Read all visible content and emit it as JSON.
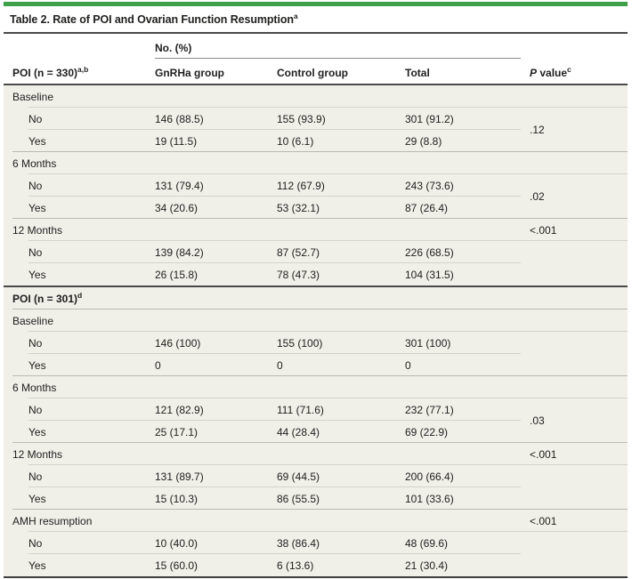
{
  "title": {
    "text": "Table 2. Rate of POI and Ovarian Function Resumption",
    "sup": "a"
  },
  "colors": {
    "accent_green": "#3fa04a",
    "row_background": "#f0efe8",
    "dark_rule": "#4a4a49",
    "inner_rule": "#d4d3cc",
    "group_rule": "#bab9b2"
  },
  "table": {
    "spanner_header": "No. (%)",
    "stub_header": {
      "text": "POI (n = 330)",
      "sup": "a,b"
    },
    "col_headers": {
      "gnrha": "GnRHa group",
      "control": "Control group",
      "total": "Total",
      "pvalue": {
        "italic": "P",
        "text": " value",
        "sup": "c"
      }
    },
    "rows": [
      {
        "kind": "section",
        "label": "Baseline",
        "sup": "",
        "g": "",
        "c": "",
        "t": "",
        "p": "",
        "p_mode": "cell"
      },
      {
        "kind": "subfirst",
        "label": "No",
        "sup": "",
        "g": "146 (88.5)",
        "c": "155 (93.9)",
        "t": "301 (91.2)",
        "p": ".12",
        "p_mode": "span2"
      },
      {
        "kind": "sublast",
        "label": "Yes",
        "sup": "",
        "g": "19 (11.5)",
        "c": "10 (6.1)",
        "t": "29 (8.8)",
        "p": "",
        "p_mode": "covered"
      },
      {
        "kind": "section",
        "label": "6 Months",
        "sup": "",
        "g": "",
        "c": "",
        "t": "",
        "p": "",
        "p_mode": "cell"
      },
      {
        "kind": "subfirst",
        "label": "No",
        "sup": "",
        "g": "131 (79.4)",
        "c": "112 (67.9)",
        "t": "243 (73.6)",
        "p": ".02",
        "p_mode": "span2"
      },
      {
        "kind": "sublast",
        "label": "Yes",
        "sup": "",
        "g": "34 (20.6)",
        "c": "53 (32.1)",
        "t": "87 (26.4)",
        "p": "",
        "p_mode": "covered"
      },
      {
        "kind": "section",
        "label": "12 Months",
        "sup": "",
        "g": "",
        "c": "",
        "t": "",
        "p": "<.001",
        "p_mode": "cell"
      },
      {
        "kind": "subfirst",
        "label": "No",
        "sup": "",
        "g": "139 (84.2)",
        "c": "87 (52.7)",
        "t": "226 (68.5)",
        "p": "",
        "p_mode": "span2"
      },
      {
        "kind": "sublast",
        "label": "Yes",
        "sup": "",
        "g": "26 (15.8)",
        "c": "78 (47.3)",
        "t": "104 (31.5)",
        "p": "",
        "p_mode": "covered"
      },
      {
        "kind": "header2",
        "label": "POI (n = 301)",
        "sup": "d",
        "g": "",
        "c": "",
        "t": "",
        "p": "",
        "p_mode": "cell"
      },
      {
        "kind": "section",
        "label": "Baseline",
        "sup": "",
        "g": "",
        "c": "",
        "t": "",
        "p": "",
        "p_mode": "cell"
      },
      {
        "kind": "subfirst",
        "label": "No",
        "sup": "",
        "g": "146 (100)",
        "c": "155 (100)",
        "t": "301 (100)",
        "p": "",
        "p_mode": "span2"
      },
      {
        "kind": "sublast",
        "label": "Yes",
        "sup": "",
        "g": "0",
        "c": "0",
        "t": "0",
        "p": "",
        "p_mode": "covered"
      },
      {
        "kind": "section",
        "label": "6 Months",
        "sup": "",
        "g": "",
        "c": "",
        "t": "",
        "p": "",
        "p_mode": "cell"
      },
      {
        "kind": "subfirst",
        "label": "No",
        "sup": "",
        "g": "121 (82.9)",
        "c": "111 (71.6)",
        "t": "232 (77.1)",
        "p": ".03",
        "p_mode": "span2"
      },
      {
        "kind": "sublast",
        "label": "Yes",
        "sup": "",
        "g": "25 (17.1)",
        "c": "44 (28.4)",
        "t": "69 (22.9)",
        "p": "",
        "p_mode": "covered"
      },
      {
        "kind": "section",
        "label": "12 Months",
        "sup": "",
        "g": "",
        "c": "",
        "t": "",
        "p": "<.001",
        "p_mode": "cell"
      },
      {
        "kind": "subfirst",
        "label": "No",
        "sup": "",
        "g": "131 (89.7)",
        "c": "69 (44.5)",
        "t": "200 (66.4)",
        "p": "",
        "p_mode": "span2"
      },
      {
        "kind": "sublast",
        "label": "Yes",
        "sup": "",
        "g": "15 (10.3)",
        "c": "86 (55.5)",
        "t": "101 (33.6)",
        "p": "",
        "p_mode": "covered"
      },
      {
        "kind": "section",
        "label": "AMH resumption",
        "sup": "",
        "g": "",
        "c": "",
        "t": "",
        "p": "<.001",
        "p_mode": "cell"
      },
      {
        "kind": "subfirst",
        "label": "No",
        "sup": "",
        "g": "10 (40.0)",
        "c": "38 (86.4)",
        "t": "48 (69.6)",
        "p": "",
        "p_mode": "span2"
      },
      {
        "kind": "sublast",
        "label": "Yes",
        "sup": "",
        "g": "15 (60.0)",
        "c": "6 (13.6)",
        "t": "21 (30.4)",
        "p": "",
        "p_mode": "covered"
      }
    ]
  }
}
